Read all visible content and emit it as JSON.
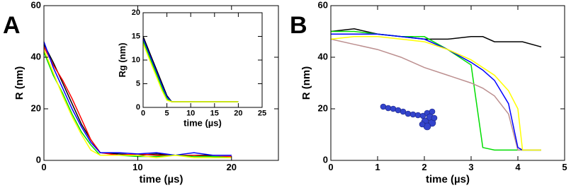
{
  "chart_data": [
    {
      "type": "line",
      "panel": "A",
      "xlabel": "time (µs)",
      "ylabel": "R (nm)",
      "xlim": [
        0,
        25
      ],
      "ylim": [
        0,
        60
      ],
      "xticks": [
        0,
        10,
        20
      ],
      "yticks": [
        0,
        20,
        40,
        60
      ],
      "x": [
        0,
        1,
        2,
        3,
        4,
        5,
        6,
        8,
        10,
        12,
        14,
        16,
        18,
        20
      ],
      "series": [
        {
          "color": "#000000",
          "values": [
            45,
            38,
            30,
            22,
            14,
            8,
            3,
            2.5,
            2,
            2.5,
            2,
            2,
            2,
            2
          ]
        },
        {
          "color": "#ff0000",
          "values": [
            44,
            37,
            31,
            24,
            16,
            8,
            3,
            2,
            2.5,
            2,
            2,
            2,
            1.5,
            1.5
          ]
        },
        {
          "color": "#0000ff",
          "values": [
            46,
            36,
            28,
            20,
            13,
            7,
            3,
            3,
            2.5,
            3,
            2,
            3,
            2,
            2
          ]
        },
        {
          "color": "#00dd00",
          "values": [
            42,
            33,
            26,
            18,
            11,
            6,
            2,
            2,
            1.5,
            1.5,
            2,
            1.5,
            1.5,
            1
          ]
        },
        {
          "color": "#ffff00",
          "values": [
            43,
            34,
            25,
            17,
            10,
            4,
            2,
            2,
            2,
            1,
            2,
            1,
            1,
            1
          ]
        }
      ]
    },
    {
      "type": "line",
      "xlabel": "time (µs)",
      "ylabel": "Rg (nm)",
      "xlim": [
        0,
        25
      ],
      "ylim": [
        0,
        20
      ],
      "xticks": [
        0,
        5,
        10,
        15,
        20,
        25
      ],
      "yticks": [
        0,
        5,
        10,
        15,
        20
      ],
      "x": [
        0,
        1,
        2,
        3,
        4,
        5,
        6,
        7,
        10,
        15,
        20
      ],
      "series": [
        {
          "color": "#000000",
          "values": [
            15,
            12.5,
            10,
            7.5,
            5,
            2.5,
            1.2,
            1.2,
            1.2,
            1.2,
            1.2
          ]
        },
        {
          "color": "#0000ff",
          "values": [
            14.5,
            12,
            9.5,
            7,
            4.5,
            2.2,
            1.2,
            1.2,
            1.2,
            1.2,
            1.2
          ]
        },
        {
          "color": "#00dd00",
          "values": [
            14,
            11.5,
            9,
            6.5,
            4,
            1.8,
            1.2,
            1.2,
            1.2,
            1.2,
            1.2
          ]
        },
        {
          "color": "#ffff00",
          "values": [
            13.5,
            11,
            8.5,
            6,
            3.5,
            1.5,
            1.2,
            1.2,
            1.2,
            1.2,
            1.2
          ]
        }
      ]
    },
    {
      "type": "line",
      "panel": "B",
      "xlabel": "time (µs)",
      "ylabel": "R (nm)",
      "xlim": [
        0,
        5
      ],
      "ylim": [
        0,
        60
      ],
      "xticks": [
        0,
        1,
        2,
        3,
        4,
        5
      ],
      "yticks": [
        0,
        20,
        40,
        60
      ],
      "x": [
        0,
        0.5,
        1,
        1.5,
        2,
        2.5,
        3,
        3.25,
        3.5,
        3.8,
        4,
        4.1,
        4.5
      ],
      "series": [
        {
          "color": "#000000",
          "values": [
            50,
            51,
            49,
            48,
            47,
            47,
            48,
            48,
            46,
            46,
            46,
            46,
            44
          ]
        },
        {
          "color": "#00dd00",
          "values": [
            50,
            50,
            49,
            48,
            48,
            43,
            37,
            5,
            4,
            4,
            4,
            4,
            4
          ]
        },
        {
          "color": "#bc8f8f",
          "values": [
            47,
            45,
            43,
            40,
            36,
            33,
            30,
            28,
            25,
            18,
            4,
            4,
            4
          ]
        },
        {
          "color": "#0000ff",
          "values": [
            49,
            49,
            49,
            48,
            47,
            43,
            38,
            35,
            31,
            22,
            5,
            4,
            4
          ]
        },
        {
          "color": "#ffff00",
          "values": [
            47,
            48,
            48,
            47,
            46,
            43,
            39,
            36,
            33,
            27,
            20,
            4,
            4
          ]
        }
      ]
    }
  ]
}
